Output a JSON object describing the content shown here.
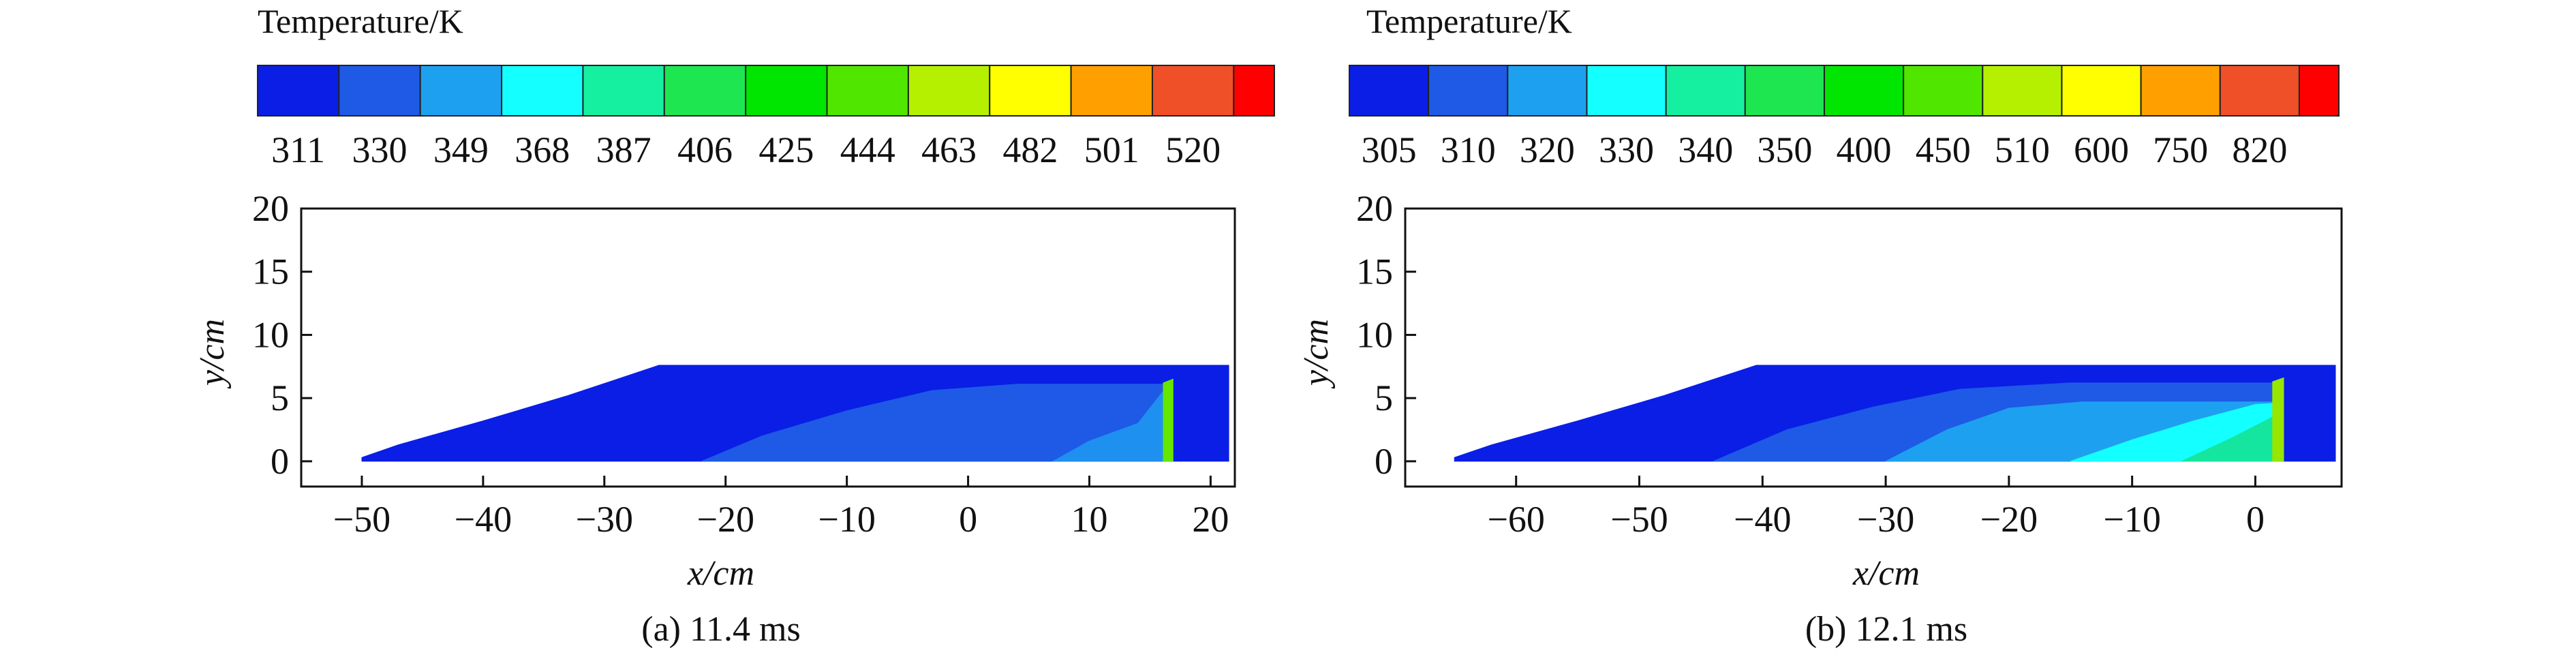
{
  "chart_data": [
    {
      "type": "heatmap",
      "panel_caption": "(a) 11.4 ms",
      "colorbar": {
        "title": "Temperature/K",
        "tick_labels": [
          "311",
          "330",
          "349",
          "368",
          "387",
          "406",
          "425",
          "444",
          "463",
          "482",
          "501",
          "520"
        ],
        "colors": [
          "#0a1ee6",
          "#1e5ae6",
          "#1ea0f0",
          "#14ffff",
          "#14f0a0",
          "#1ee650",
          "#00e600",
          "#50e600",
          "#b4f000",
          "#ffff00",
          "#ffa000",
          "#f05028",
          "#ff0000"
        ]
      },
      "xlabel": "x/cm",
      "ylabel": "y/cm",
      "xlim": [
        -55,
        22
      ],
      "ylim": [
        -2,
        20
      ],
      "xticks": [
        -50,
        -40,
        -30,
        -20,
        -10,
        0,
        10,
        20
      ],
      "yticks": [
        0,
        5,
        10,
        15,
        20
      ],
      "regions": [
        {
          "color": "#0a1ee6",
          "polygon": [
            [
              -50,
              0.3
            ],
            [
              -47,
              1.3
            ],
            [
              -40,
              3.2
            ],
            [
              -33,
              5.2
            ],
            [
              -25.5,
              7.6
            ],
            [
              21.5,
              7.6
            ],
            [
              21.5,
              0
            ],
            [
              -50,
              0
            ]
          ]
        },
        {
          "color": "#1e5ae6",
          "polygon": [
            [
              -22,
              0
            ],
            [
              -17,
              2
            ],
            [
              -10,
              4
            ],
            [
              -3,
              5.6
            ],
            [
              4,
              6.1
            ],
            [
              16.5,
              6.1
            ],
            [
              16.5,
              0
            ]
          ]
        },
        {
          "color": "#1e90f0",
          "polygon": [
            [
              7,
              0
            ],
            [
              10,
              1.6
            ],
            [
              14,
              3
            ],
            [
              16.3,
              5.8
            ],
            [
              16.3,
              0
            ]
          ]
        },
        {
          "color": "#64e600",
          "polygon": [
            [
              16.1,
              0
            ],
            [
              16.1,
              6.2
            ],
            [
              16.9,
              6.5
            ],
            [
              16.9,
              0
            ]
          ]
        }
      ]
    },
    {
      "type": "heatmap",
      "panel_caption": "(b) 12.1 ms",
      "colorbar": {
        "title": "Temperature/K",
        "tick_labels": [
          "305",
          "310",
          "320",
          "330",
          "340",
          "350",
          "400",
          "450",
          "510",
          "600",
          "750",
          "820"
        ],
        "colors": [
          "#0a1ee6",
          "#1e5ae6",
          "#1ea0f0",
          "#14ffff",
          "#14f0a0",
          "#1ee650",
          "#00e600",
          "#50e600",
          "#b4f000",
          "#ffff00",
          "#ffa000",
          "#f05028",
          "#ff0000"
        ]
      },
      "xlabel": "x/cm",
      "ylabel": "y/cm",
      "xlim": [
        -69,
        7
      ],
      "ylim": [
        -2,
        20
      ],
      "xticks": [
        -60,
        -50,
        -40,
        -30,
        -20,
        -10,
        0
      ],
      "yticks": [
        0,
        5,
        10,
        15,
        20
      ],
      "regions": [
        {
          "color": "#0a1ee6",
          "polygon": [
            [
              -65,
              0.3
            ],
            [
              -62,
              1.3
            ],
            [
              -55,
              3.2
            ],
            [
              -48,
              5.2
            ],
            [
              -40.5,
              7.6
            ],
            [
              6.5,
              7.6
            ],
            [
              6.5,
              0
            ],
            [
              -65,
              0
            ]
          ]
        },
        {
          "color": "#1e5ae6",
          "polygon": [
            [
              -44,
              0
            ],
            [
              -38,
              2.5
            ],
            [
              -31,
              4.3
            ],
            [
              -24,
              5.7
            ],
            [
              -15,
              6.2
            ],
            [
              1.8,
              6.2
            ],
            [
              1.8,
              0
            ]
          ]
        },
        {
          "color": "#1ea0f0",
          "polygon": [
            [
              -30,
              0
            ],
            [
              -25,
              2.5
            ],
            [
              -20,
              4.2
            ],
            [
              -14,
              4.7
            ],
            [
              1.8,
              4.7
            ],
            [
              1.8,
              0
            ]
          ]
        },
        {
          "color": "#14ffff",
          "polygon": [
            [
              -15,
              0
            ],
            [
              -10,
              1.7
            ],
            [
              -5,
              3.2
            ],
            [
              0,
              4.5
            ],
            [
              1.7,
              4.6
            ],
            [
              1.7,
              0
            ]
          ]
        },
        {
          "color": "#14e6a0",
          "polygon": [
            [
              -6,
              0
            ],
            [
              -2,
              1.8
            ],
            [
              1.6,
              3.6
            ],
            [
              1.6,
              0
            ]
          ]
        },
        {
          "color": "#96e600",
          "polygon": [
            [
              1.4,
              0
            ],
            [
              1.4,
              6.3
            ],
            [
              2.3,
              6.6
            ],
            [
              2.3,
              0
            ]
          ]
        }
      ]
    }
  ]
}
